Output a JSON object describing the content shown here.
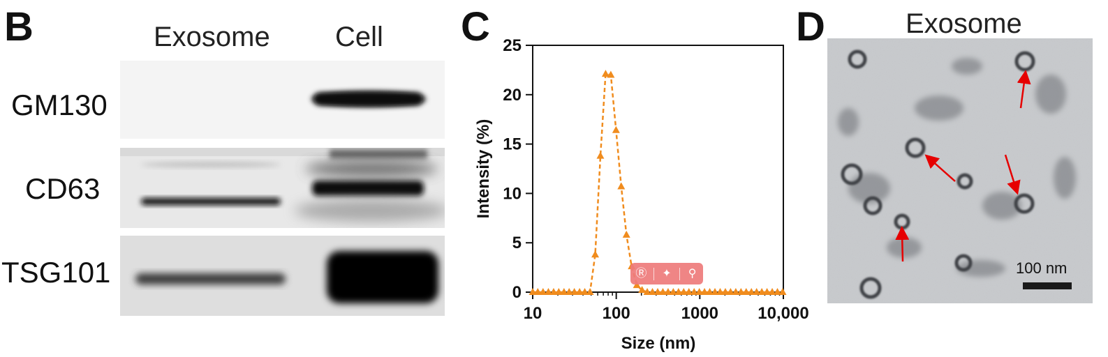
{
  "panels": {
    "b": {
      "letter": "B",
      "columns": [
        "Exosome",
        "Cell"
      ],
      "rows": [
        "GM130",
        "CD63",
        "TSG101"
      ]
    },
    "c": {
      "letter": "C"
    },
    "d": {
      "letter": "D",
      "title": "Exosome",
      "scale_bar": "100 nm"
    }
  },
  "chart_data": {
    "type": "line",
    "xlabel": "Size (nm)",
    "ylabel": "Intensity (%)",
    "xscale": "log",
    "xlim": [
      10,
      10000
    ],
    "ylim": [
      0,
      25
    ],
    "xticks": [
      10,
      100,
      1000,
      10000
    ],
    "xtick_labels": [
      "10",
      "100",
      "1000",
      "10,000"
    ],
    "yticks": [
      0,
      5,
      10,
      15,
      20,
      25
    ],
    "ytick_labels": [
      "0",
      "5",
      "10",
      "15",
      "20",
      "25"
    ],
    "color": "#f08c1e",
    "marker": "triangle",
    "line_style": "dashed",
    "grid": false,
    "series": [
      {
        "x": [
          10,
          11.5,
          13.3,
          15.4,
          17.8,
          20.5,
          23.7,
          27.3,
          31.5,
          36.4,
          42,
          48.5,
          56,
          64.6,
          74.6,
          86.1,
          99.4,
          114.7,
          132.4,
          152.8,
          176.4,
          203.6,
          235,
          271.3,
          313.2,
          361.5,
          417.3,
          481.7,
          556,
          641.7,
          740.8,
          855,
          987,
          1139,
          1315,
          1518,
          1752,
          2023,
          2335,
          2695,
          3111,
          3591,
          4145,
          4785,
          5523,
          6375,
          7359,
          8495,
          9806
        ],
        "y": [
          0,
          0,
          0,
          0,
          0,
          0,
          0,
          0,
          0,
          0,
          0,
          0,
          3.8,
          13.8,
          22.1,
          22.0,
          16.4,
          10.7,
          5.8,
          2.6,
          0.7,
          0.2,
          0,
          0,
          0,
          0,
          0,
          0,
          0,
          0,
          0,
          0,
          0,
          0,
          0,
          0,
          0,
          0,
          0,
          0,
          0,
          0,
          0,
          0,
          0,
          0,
          0,
          0,
          0
        ]
      }
    ]
  }
}
